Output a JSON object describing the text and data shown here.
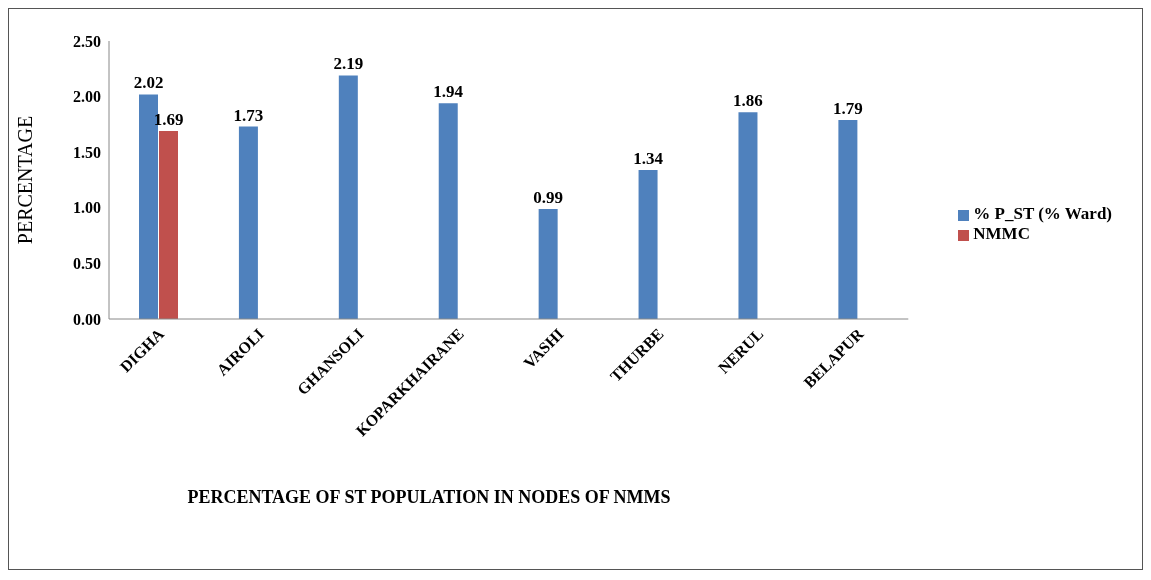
{
  "chart_data": {
    "type": "bar",
    "xlabel": "PERCENTAGE OF ST POPULATION IN NODES OF NMMS",
    "ylabel": "PERCENTAGE",
    "categories": [
      "DIGHA",
      "AIROLI",
      "GHANSOLI",
      "KOPARKHAIRANE",
      "VASHI",
      "THURBE",
      "NERUL",
      "BELAPUR"
    ],
    "series": [
      {
        "name": "% P_ST (% Ward)",
        "color": "#4f81bd",
        "values": [
          2.02,
          1.73,
          2.19,
          1.94,
          0.99,
          1.34,
          1.86,
          1.79
        ]
      },
      {
        "name": "NMMC",
        "color": "#c0504d",
        "values": [
          1.69,
          null,
          null,
          null,
          null,
          null,
          null,
          null
        ]
      }
    ],
    "ylim": [
      0,
      2.5
    ],
    "yticks": [
      {
        "value": 0,
        "label": "0.00"
      },
      {
        "value": 0.5,
        "label": "0.50"
      },
      {
        "value": 1,
        "label": "1.00"
      },
      {
        "value": 1.5,
        "label": "1.50"
      },
      {
        "value": 2,
        "label": "2.00"
      },
      {
        "value": 2.5,
        "label": "2.50"
      }
    ],
    "data_labels": true,
    "grid": false,
    "legend": "right"
  }
}
